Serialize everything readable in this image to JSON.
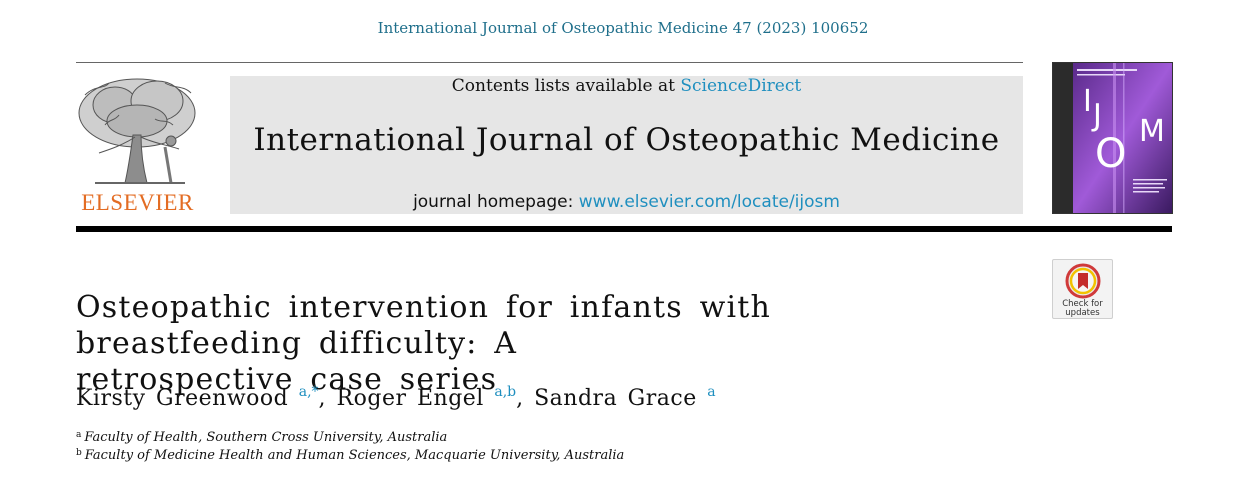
{
  "header": {
    "citation": "International Journal of Osteopathic Medicine 47 (2023) 100652",
    "contents_prefix": "Contents lists available at ",
    "contents_link": "ScienceDirect",
    "journal_title": "International Journal of Osteopathic Medicine",
    "homepage_prefix": "journal homepage: ",
    "homepage_url": "www.elsevier.com/locate/ijosm"
  },
  "publisher": {
    "logo_text": "ELSEVIER",
    "logo_color": "#e36c23"
  },
  "cover": {
    "letters": [
      "I",
      "J",
      "O",
      "M"
    ],
    "color": "#8a3fc1"
  },
  "check_updates": {
    "label_line1": "Check for",
    "label_line2": "updates"
  },
  "article": {
    "title_line1": "Osteopathic intervention for infants with breastfeeding difficulty: A",
    "title_line2": "retrospective case series"
  },
  "authors": [
    {
      "name": "Kirsty Greenwood",
      "marks": "a,*",
      "sep": ","
    },
    {
      "name": "Roger Engel",
      "marks": "a,b",
      "sep": ","
    },
    {
      "name": "Sandra Grace",
      "marks": "a",
      "sep": ""
    }
  ],
  "affiliations": [
    {
      "mark": "a",
      "text": "Faculty of Health, Southern Cross University, Australia"
    },
    {
      "mark": "b",
      "text": "Faculty of Medicine Health and Human Sciences, Macquarie University, Australia"
    }
  ],
  "colors": {
    "link": "#1f8fbf",
    "citation": "#1f6f8b",
    "banner_bg": "#e6e6e6"
  }
}
